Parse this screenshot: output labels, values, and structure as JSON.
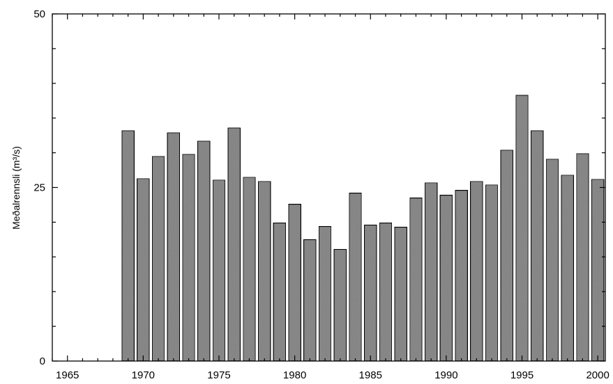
{
  "chart_data": {
    "type": "bar",
    "title": "",
    "xlabel": "",
    "ylabel": "Meðalrennsli (m³/s)",
    "xlim": [
      1964,
      2000.5
    ],
    "ylim": [
      0,
      50
    ],
    "x_ticks": [
      1965,
      1970,
      1975,
      1980,
      1985,
      1990,
      1995,
      2000
    ],
    "y_ticks": [
      0,
      25,
      50
    ],
    "grid": false,
    "bar_color": "#8c8c8c",
    "bar_edge_color": "#000000",
    "series": [
      {
        "x": [
          1969,
          1970,
          1971,
          1972,
          1973,
          1974,
          1975,
          1976,
          1977,
          1978,
          1979,
          1980,
          1981,
          1982,
          1983,
          1984,
          1985,
          1986,
          1987,
          1988,
          1989,
          1990,
          1991,
          1992,
          1993,
          1994,
          1995,
          1996,
          1997,
          1998,
          1999,
          2000
        ],
        "values": [
          33.2,
          26.3,
          29.5,
          32.9,
          29.8,
          31.7,
          26.1,
          33.6,
          26.5,
          25.9,
          19.9,
          22.6,
          17.5,
          19.4,
          16.1,
          24.2,
          19.6,
          19.9,
          19.3,
          23.5,
          25.7,
          23.9,
          24.6,
          25.9,
          25.4,
          30.4,
          38.3,
          33.2,
          29.1,
          26.8,
          29.9,
          26.2
        ]
      }
    ]
  }
}
